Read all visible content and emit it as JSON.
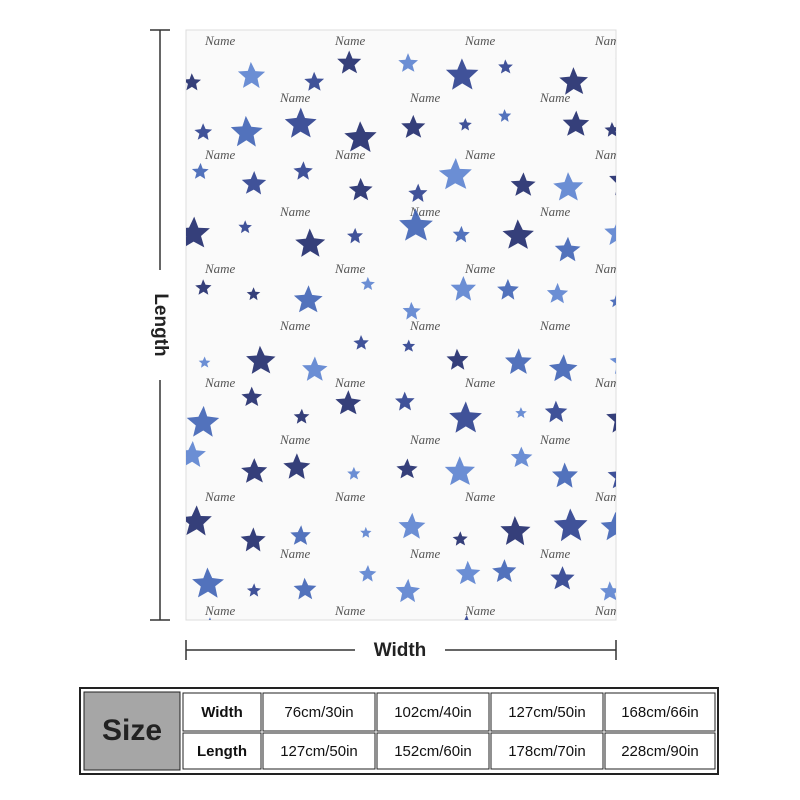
{
  "pattern_text": "Name",
  "dimensions": {
    "length": "Length",
    "width": "Width"
  },
  "table": {
    "header": "Size",
    "rows": [
      [
        "Width",
        "76cm/30in",
        "102cm/40in",
        "127cm/50in",
        "168cm/66in"
      ],
      [
        "Length",
        "127cm/50in",
        "152cm/60in",
        "178cm/70in",
        "228cm/90in"
      ]
    ]
  }
}
